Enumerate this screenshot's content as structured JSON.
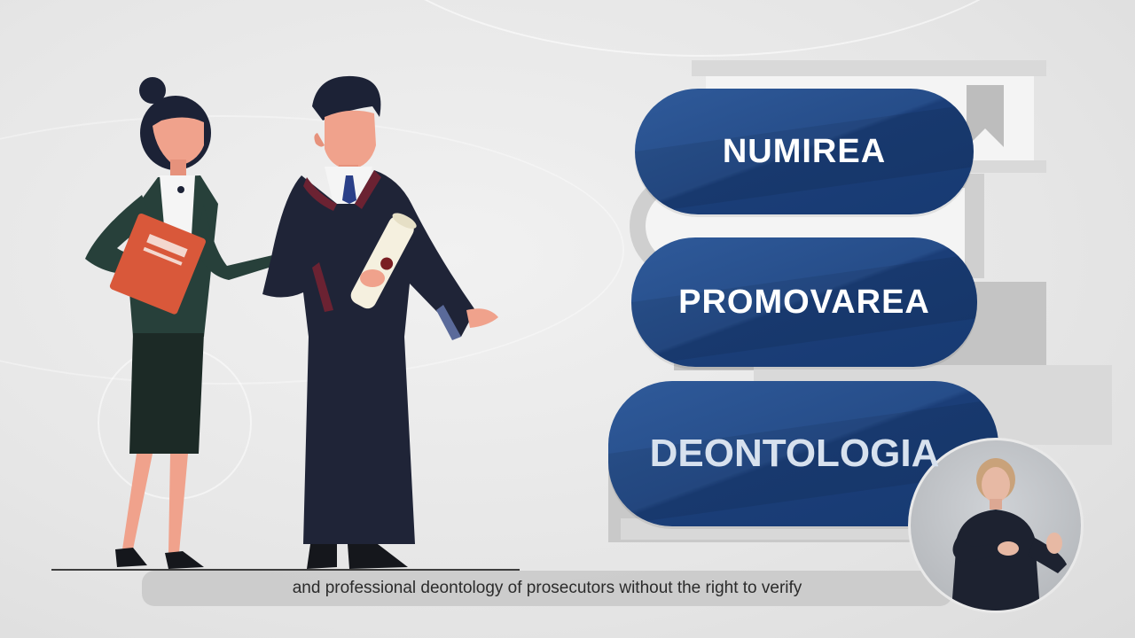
{
  "pills": [
    {
      "label": "NUMIREA"
    },
    {
      "label": "PROMOVAREA"
    },
    {
      "label": "DEONTOLOGIA"
    }
  ],
  "caption": {
    "text": "and professional deontology of prosecutors without the right to verify"
  },
  "colors": {
    "pill_blue": "#264d89",
    "background": "#e9e9e9",
    "robe": "#1f2437",
    "skin": "#f0a28c",
    "folder": "#d9583a"
  }
}
